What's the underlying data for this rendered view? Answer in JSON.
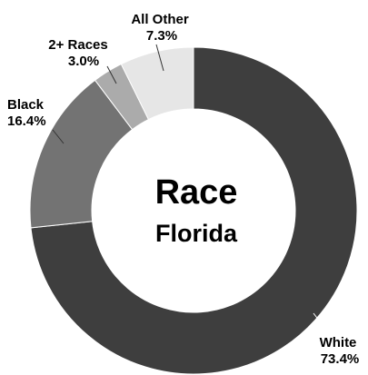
{
  "chart_data": {
    "type": "donut",
    "title": "Race",
    "subtitle": "Florida",
    "categories": [
      "White",
      "Black",
      "2+ Races",
      "All Other"
    ],
    "values": [
      73.4,
      16.4,
      3.0,
      7.3
    ],
    "value_labels": [
      "73.4%",
      "16.4%",
      "3.0%",
      "7.3%"
    ],
    "colors": [
      "#3e3e3e",
      "#737373",
      "#ababab",
      "#e6e6e6"
    ]
  }
}
